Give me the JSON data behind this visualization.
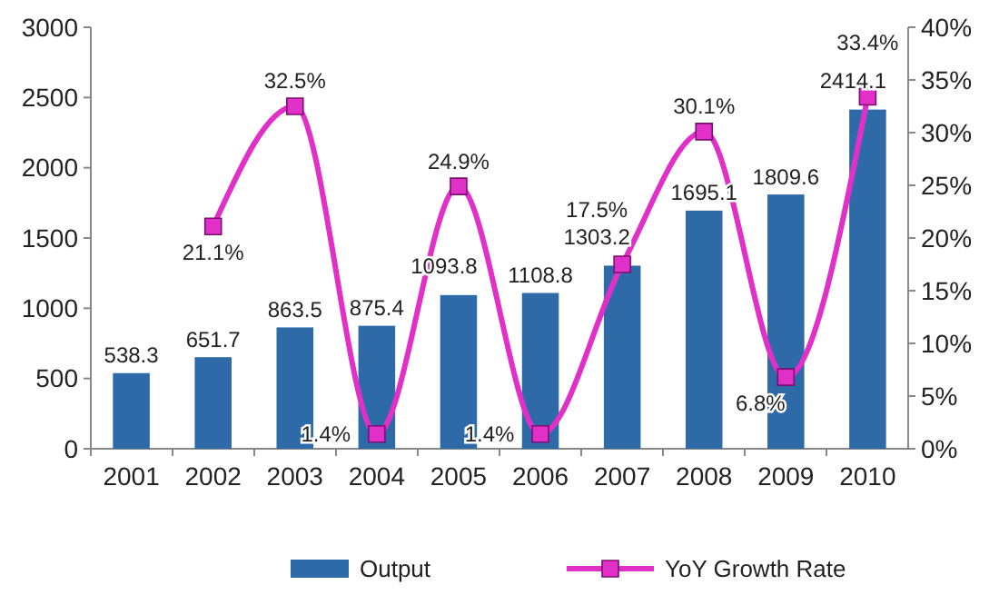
{
  "chart_data": {
    "type": "bar",
    "categories": [
      "2001",
      "2002",
      "2003",
      "2004",
      "2005",
      "2006",
      "2007",
      "2008",
      "2009",
      "2010"
    ],
    "series": [
      {
        "name": "Output",
        "type": "bar",
        "color": "#2e6aa8",
        "values": [
          538.3,
          651.7,
          863.5,
          875.4,
          1093.8,
          1108.8,
          1303.2,
          1695.1,
          1809.6,
          2414.1
        ],
        "value_labels": [
          "538.3",
          "651.7",
          "863.5",
          "875.4",
          "1093.8",
          "1108.8",
          "1303.2",
          "1695.1",
          "1809.6",
          "2414.1"
        ]
      },
      {
        "name": "YoY Growth Rate",
        "type": "line",
        "axis": "y2",
        "color": "#e030c8",
        "marker": "square",
        "values": [
          null,
          21.1,
          32.5,
          1.4,
          24.9,
          1.4,
          17.5,
          30.1,
          6.8,
          33.4
        ],
        "value_labels": [
          null,
          "21.1%",
          "32.5%",
          "1.4%",
          "24.9%",
          "1.4%",
          "17.5%",
          "30.1%",
          "6.8%",
          "33.4%"
        ]
      }
    ],
    "ylim": [
      0,
      3000
    ],
    "yticks": [
      0,
      500,
      1000,
      1500,
      2000,
      2500,
      3000
    ],
    "y2lim": [
      0,
      40
    ],
    "y2ticks": [
      {
        "value": 0,
        "label": "0%"
      },
      {
        "value": 5,
        "label": "5%"
      },
      {
        "value": 10,
        "label": "10%"
      },
      {
        "value": 15,
        "label": "15%"
      },
      {
        "value": 20,
        "label": "20%"
      },
      {
        "value": 25,
        "label": "25%"
      },
      {
        "value": 30,
        "label": "30%"
      },
      {
        "value": 35,
        "label": "35%"
      },
      {
        "value": 40,
        "label": "40%"
      }
    ],
    "legend": "bottom"
  }
}
